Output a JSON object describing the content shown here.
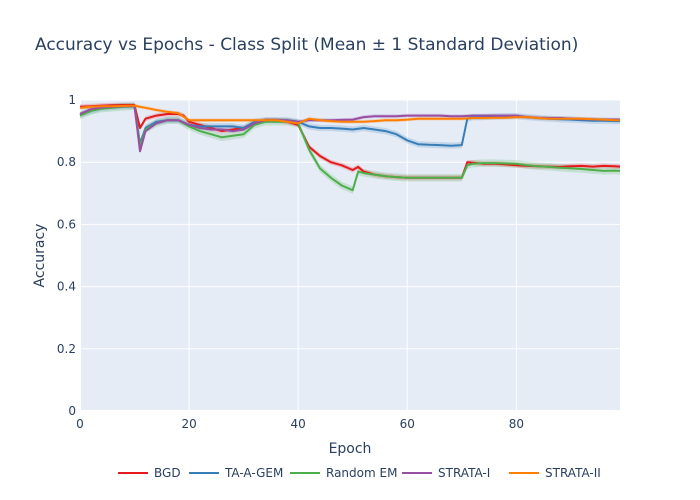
{
  "chart_data": {
    "type": "line",
    "title": "Accuracy vs Epochs - Class Split (Mean ± 1 Standard Deviation)",
    "xlabel": "Epoch",
    "ylabel": "Accuracy",
    "xlim": [
      0,
      99
    ],
    "ylim": [
      0,
      1
    ],
    "xticks": [
      "0",
      "20",
      "40",
      "60",
      "80"
    ],
    "yticks": [
      "0",
      "0.2",
      "0.4",
      "0.6",
      "0.8",
      "1"
    ],
    "grid": true,
    "legend_position": "bottom",
    "series": [
      {
        "name": "BGD",
        "color": "#e41a1c",
        "x": [
          0,
          2,
          4,
          6,
          8,
          10,
          11,
          12,
          14,
          16,
          18,
          19,
          20,
          22,
          24,
          26,
          28,
          30,
          32,
          34,
          36,
          38,
          40,
          42,
          44,
          46,
          48,
          50,
          51,
          52,
          54,
          56,
          58,
          60,
          62,
          64,
          66,
          68,
          70,
          71,
          72,
          74,
          76,
          78,
          80,
          82,
          84,
          86,
          88,
          90,
          92,
          94,
          96,
          98,
          99
        ],
        "y": [
          0.978,
          0.98,
          0.982,
          0.983,
          0.984,
          0.984,
          0.91,
          0.94,
          0.95,
          0.955,
          0.955,
          0.95,
          0.93,
          0.92,
          0.91,
          0.9,
          0.905,
          0.91,
          0.925,
          0.935,
          0.935,
          0.93,
          0.92,
          0.85,
          0.82,
          0.8,
          0.79,
          0.775,
          0.785,
          0.77,
          0.76,
          0.755,
          0.752,
          0.75,
          0.75,
          0.75,
          0.75,
          0.75,
          0.75,
          0.8,
          0.798,
          0.795,
          0.795,
          0.793,
          0.79,
          0.788,
          0.787,
          0.786,
          0.785,
          0.787,
          0.788,
          0.786,
          0.788,
          0.787,
          0.786
        ],
        "band": 0.008
      },
      {
        "name": "TA-A-GEM",
        "color": "#377eb8",
        "x": [
          0,
          2,
          4,
          6,
          8,
          10,
          11,
          12,
          14,
          16,
          18,
          20,
          22,
          24,
          26,
          28,
          30,
          32,
          34,
          36,
          38,
          40,
          42,
          44,
          46,
          48,
          50,
          52,
          54,
          56,
          58,
          60,
          62,
          64,
          66,
          68,
          70,
          71,
          72,
          74,
          76,
          78,
          80,
          82,
          84,
          86,
          88,
          90,
          92,
          94,
          96,
          98,
          99
        ],
        "y": [
          0.952,
          0.965,
          0.975,
          0.978,
          0.98,
          0.98,
          0.86,
          0.91,
          0.93,
          0.935,
          0.935,
          0.92,
          0.915,
          0.915,
          0.915,
          0.915,
          0.91,
          0.93,
          0.935,
          0.935,
          0.935,
          0.93,
          0.915,
          0.91,
          0.91,
          0.908,
          0.905,
          0.91,
          0.905,
          0.9,
          0.89,
          0.87,
          0.858,
          0.856,
          0.855,
          0.853,
          0.855,
          0.94,
          0.945,
          0.945,
          0.947,
          0.948,
          0.948,
          0.945,
          0.942,
          0.94,
          0.938,
          0.937,
          0.935,
          0.933,
          0.933,
          0.932,
          0.932
        ],
        "band": 0.01
      },
      {
        "name": "Random EM",
        "color": "#4daf4a",
        "x": [
          0,
          2,
          4,
          6,
          8,
          10,
          11,
          12,
          14,
          16,
          18,
          20,
          22,
          24,
          26,
          28,
          30,
          32,
          34,
          36,
          38,
          40,
          42,
          44,
          46,
          48,
          50,
          51,
          52,
          54,
          56,
          58,
          60,
          62,
          64,
          66,
          68,
          70,
          71,
          72,
          74,
          76,
          78,
          80,
          82,
          84,
          86,
          88,
          90,
          92,
          94,
          96,
          98,
          99
        ],
        "y": [
          0.95,
          0.965,
          0.972,
          0.975,
          0.978,
          0.98,
          0.85,
          0.905,
          0.925,
          0.935,
          0.935,
          0.915,
          0.9,
          0.89,
          0.88,
          0.885,
          0.89,
          0.92,
          0.93,
          0.93,
          0.93,
          0.925,
          0.84,
          0.78,
          0.75,
          0.725,
          0.71,
          0.77,
          0.765,
          0.76,
          0.755,
          0.752,
          0.75,
          0.75,
          0.75,
          0.75,
          0.75,
          0.75,
          0.79,
          0.795,
          0.797,
          0.797,
          0.796,
          0.795,
          0.79,
          0.787,
          0.785,
          0.782,
          0.78,
          0.778,
          0.775,
          0.772,
          0.773,
          0.772
        ],
        "band": 0.012
      },
      {
        "name": "STRATA-I",
        "color": "#984ea3",
        "x": [
          0,
          2,
          4,
          6,
          8,
          10,
          11,
          12,
          14,
          16,
          18,
          20,
          22,
          24,
          26,
          28,
          30,
          32,
          34,
          36,
          38,
          40,
          42,
          44,
          46,
          48,
          50,
          52,
          54,
          56,
          58,
          60,
          62,
          64,
          66,
          68,
          70,
          72,
          74,
          76,
          78,
          80,
          82,
          84,
          86,
          88,
          90,
          92,
          94,
          96,
          98,
          99
        ],
        "y": [
          0.955,
          0.97,
          0.976,
          0.978,
          0.98,
          0.98,
          0.835,
          0.9,
          0.925,
          0.935,
          0.935,
          0.92,
          0.91,
          0.905,
          0.905,
          0.9,
          0.905,
          0.925,
          0.935,
          0.935,
          0.935,
          0.93,
          0.935,
          0.935,
          0.935,
          0.936,
          0.937,
          0.945,
          0.948,
          0.948,
          0.948,
          0.95,
          0.95,
          0.95,
          0.95,
          0.948,
          0.948,
          0.95,
          0.95,
          0.95,
          0.95,
          0.95,
          0.945,
          0.943,
          0.942,
          0.942,
          0.94,
          0.938,
          0.938,
          0.937,
          0.937,
          0.937
        ],
        "band": 0.006
      },
      {
        "name": "STRATA-II",
        "color": "#ff7f00",
        "x": [
          0,
          2,
          4,
          6,
          8,
          10,
          11,
          12,
          14,
          16,
          18,
          20,
          22,
          24,
          26,
          28,
          30,
          32,
          34,
          36,
          38,
          40,
          42,
          44,
          46,
          48,
          50,
          52,
          54,
          56,
          58,
          60,
          62,
          64,
          66,
          68,
          70,
          72,
          74,
          76,
          78,
          80,
          82,
          84,
          86,
          88,
          90,
          92,
          94,
          96,
          98,
          99
        ],
        "y": [
          0.975,
          0.978,
          0.98,
          0.98,
          0.981,
          0.982,
          0.978,
          0.975,
          0.968,
          0.962,
          0.958,
          0.935,
          0.935,
          0.935,
          0.935,
          0.935,
          0.935,
          0.935,
          0.935,
          0.935,
          0.93,
          0.925,
          0.94,
          0.935,
          0.932,
          0.93,
          0.93,
          0.93,
          0.932,
          0.935,
          0.935,
          0.937,
          0.94,
          0.94,
          0.94,
          0.94,
          0.94,
          0.942,
          0.942,
          0.943,
          0.943,
          0.945,
          0.945,
          0.942,
          0.94,
          0.94,
          0.94,
          0.94,
          0.938,
          0.937,
          0.935,
          0.935
        ],
        "band": 0.006
      }
    ]
  }
}
